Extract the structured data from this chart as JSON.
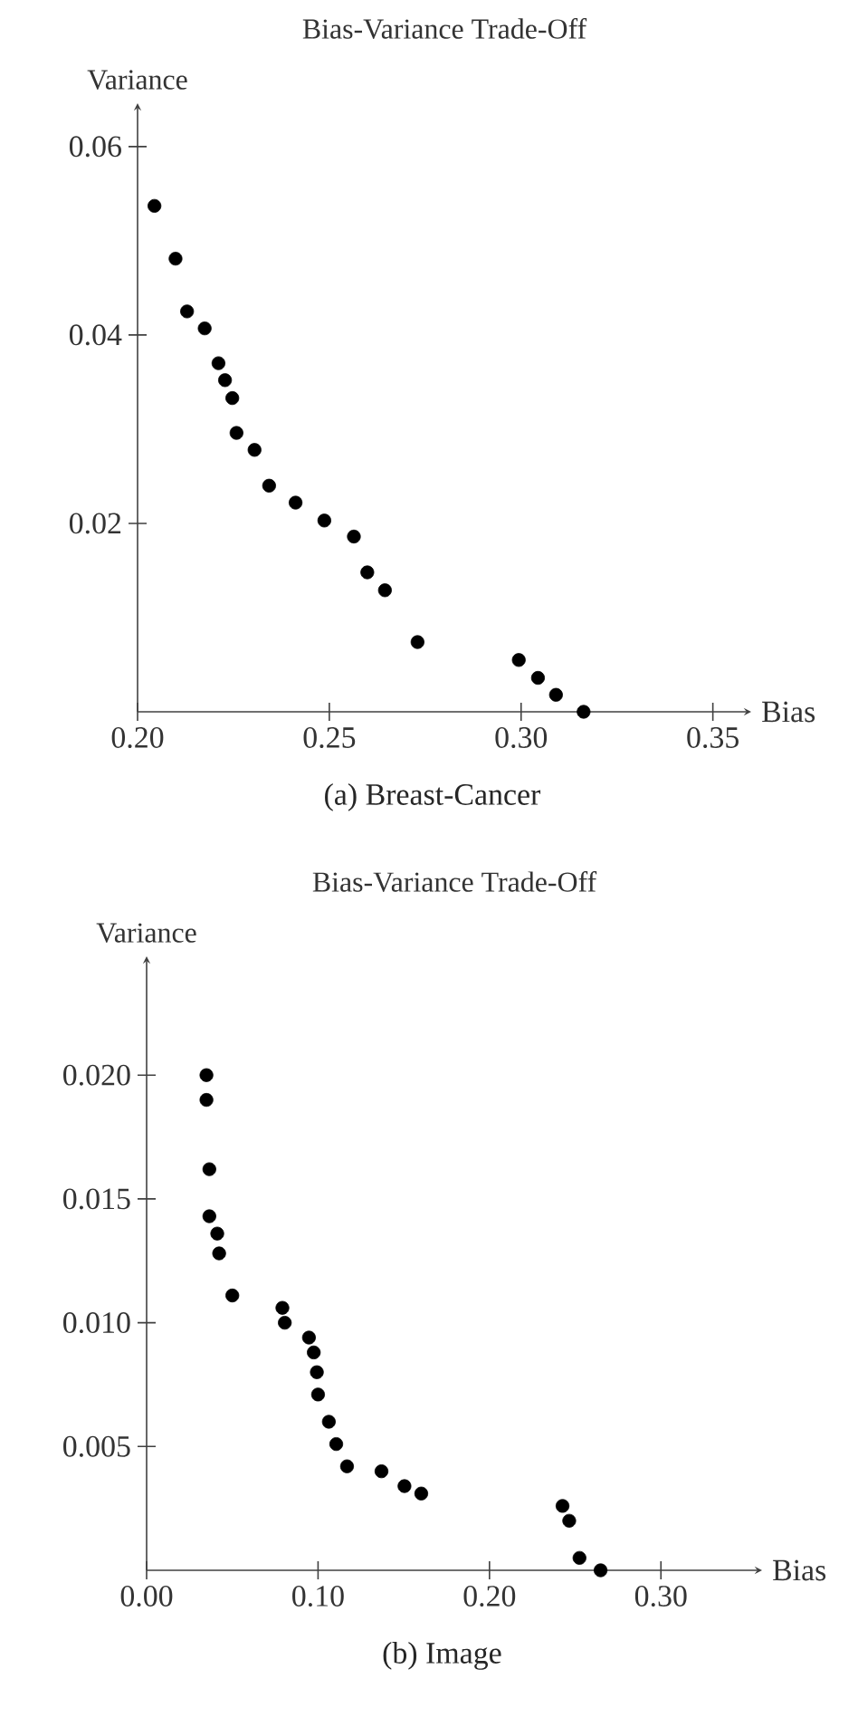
{
  "chart_data": [
    {
      "type": "scatter",
      "title": "Bias-Variance Trade-Off",
      "xlabel": "Bias",
      "ylabel": "Variance",
      "annotations": [
        "(a) Breast-Cancer"
      ],
      "color": "#000000",
      "marker": "circle",
      "x": [
        0.2044,
        0.2099,
        0.2129,
        0.2175,
        0.2211,
        0.2228,
        0.2247,
        0.2258,
        0.2305,
        0.2343,
        0.2412,
        0.2487,
        0.2564,
        0.2599,
        0.2645,
        0.273,
        0.2994,
        0.3044,
        0.3091,
        0.3163
      ],
      "values": [
        0.0537,
        0.0481,
        0.0425,
        0.0407,
        0.037,
        0.0352,
        0.0333,
        0.0296,
        0.0278,
        0.024,
        0.0222,
        0.0203,
        0.0186,
        0.0148,
        0.0129,
        0.0074,
        0.0055,
        0.0036,
        0.0018,
        0.0
      ],
      "xlim": [
        0.2,
        0.36
      ],
      "ylim": [
        0,
        0.0646
      ],
      "xticks": [
        {
          "value": 0.2,
          "label": "0.20"
        },
        0.25,
        {
          "value": 0.3,
          "label": "0.30"
        },
        0.35
      ],
      "yticks": [
        0.02,
        0.04,
        0.06
      ]
    },
    {
      "type": "scatter",
      "title": "Bias-Variance Trade-Off",
      "xlabel": "Bias",
      "ylabel": "Variance",
      "annotations": [
        "(b) Image"
      ],
      "color": "#000000",
      "marker": "circle",
      "x": [
        0.0349,
        0.0349,
        0.0366,
        0.0366,
        0.0412,
        0.0423,
        0.05,
        0.0792,
        0.0806,
        0.0947,
        0.0975,
        0.0993,
        0.1,
        0.1063,
        0.1106,
        0.1169,
        0.137,
        0.1504,
        0.1602,
        0.2426,
        0.2465,
        0.2525,
        0.2648
      ],
      "values": [
        0.02,
        0.019,
        0.0162,
        0.0143,
        0.0136,
        0.0128,
        0.0111,
        0.0106,
        0.01,
        0.0094,
        0.0088,
        0.008,
        0.0071,
        0.006,
        0.0051,
        0.0042,
        0.004,
        0.0034,
        0.0031,
        0.0026,
        0.002,
        0.0005,
        0.0
      ],
      "xlim": [
        0,
        0.359
      ],
      "ylim": [
        0,
        0.0248
      ],
      "xticks": [
        {
          "value": 0,
          "label": "0.00"
        },
        {
          "value": 0.1,
          "label": "0.10"
        },
        {
          "value": 0.2,
          "label": "0.20"
        },
        {
          "value": 0.3,
          "label": "0.30"
        }
      ],
      "yticks": [
        0.005,
        {
          "value": 0.01,
          "label": "0.010"
        },
        0.015,
        {
          "value": 0.02,
          "label": "0.020"
        }
      ]
    }
  ]
}
